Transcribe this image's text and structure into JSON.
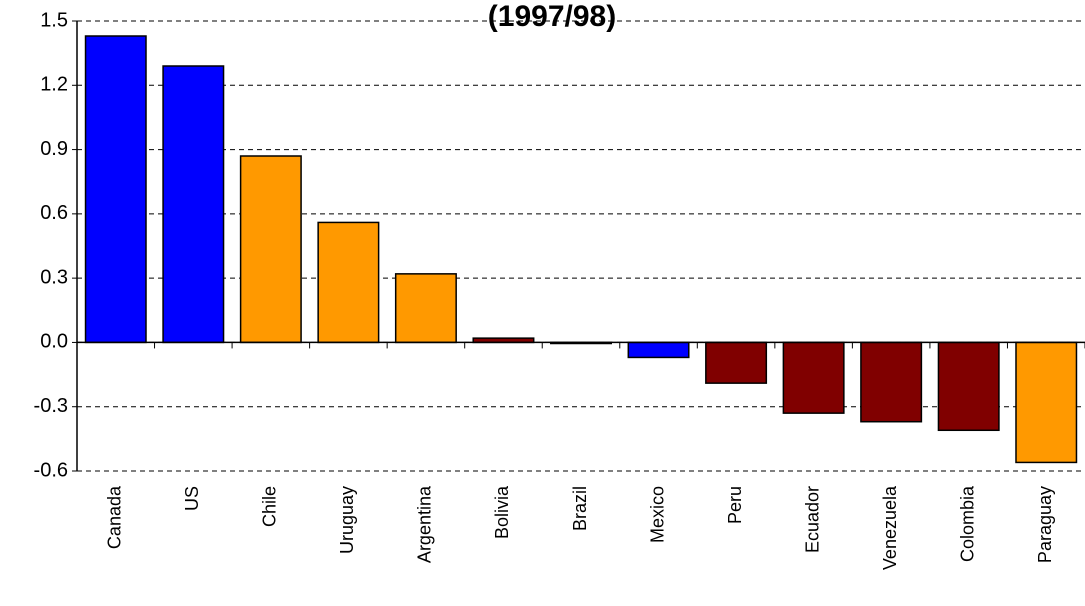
{
  "chart_data": {
    "type": "bar",
    "title": "(1997/98)",
    "categories": [
      "Canada",
      "US",
      "Chile",
      "Uruguay",
      "Argentina",
      "Bolivia",
      "Brazil",
      "Mexico",
      "Peru",
      "Ecuador",
      "Venezuela",
      "Colombia",
      "Paraguay"
    ],
    "values": [
      1.43,
      1.29,
      0.87,
      0.56,
      0.32,
      0.02,
      -0.005,
      -0.07,
      -0.19,
      -0.33,
      -0.37,
      -0.41,
      -0.56
    ],
    "colors": [
      "#0000ff",
      "#0000ff",
      "#ff9900",
      "#ff9900",
      "#ff9900",
      "#800000",
      "#800000",
      "#0000ff",
      "#800000",
      "#800000",
      "#800000",
      "#800000",
      "#ff9900"
    ],
    "ylim": [
      -0.6,
      1.5
    ],
    "yticks": [
      1.5,
      1.2,
      0.9,
      0.6,
      0.3,
      {
        "value": 0,
        "label": "0.0"
      },
      -0.3,
      -0.6
    ],
    "grid": true
  }
}
